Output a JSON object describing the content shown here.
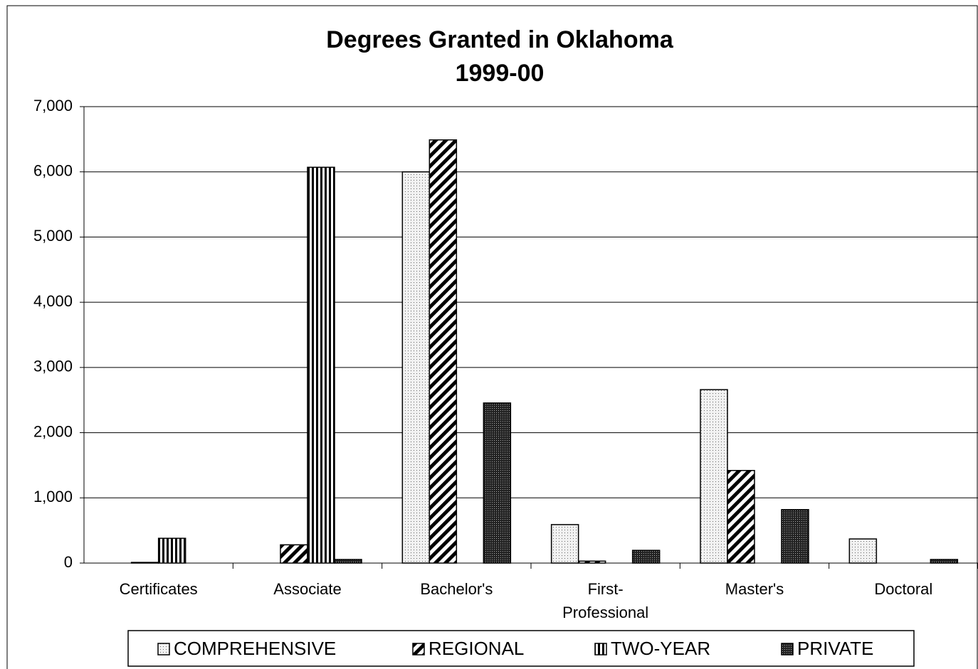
{
  "chart_data": {
    "type": "bar",
    "title": "Degrees Granted in Oklahoma",
    "subtitle": "1999-00",
    "categories": [
      "Certificates",
      "Associate",
      "Bachelor's",
      "First-Professional",
      "Master's",
      "Doctoral"
    ],
    "series": [
      {
        "name": "COMPREHENSIVE",
        "color": "#e6e6e6",
        "pattern": "dots",
        "values": [
          0,
          0,
          6000,
          590,
          2660,
          370
        ]
      },
      {
        "name": "REGIONAL",
        "color": "#ffffff",
        "pattern": "diagonal",
        "values": [
          10,
          280,
          6490,
          30,
          1420,
          0
        ]
      },
      {
        "name": "TWO-YEAR",
        "color": "#ffffff",
        "pattern": "vertical",
        "values": [
          380,
          6070,
          0,
          0,
          0,
          0
        ]
      },
      {
        "name": "PRIVATE",
        "color": "#333333",
        "pattern": "dense-dots",
        "values": [
          0,
          55,
          2455,
          195,
          820,
          55
        ]
      }
    ],
    "ylim": [
      0,
      7000
    ],
    "yticks": [
      0,
      {
        "value": 1000,
        "label": "1,000"
      },
      {
        "value": 2000,
        "label": "2,000"
      },
      {
        "value": 3000,
        "label": "3,000"
      },
      {
        "value": 4000,
        "label": "4,000"
      },
      {
        "value": 5000,
        "label": "5,000"
      },
      {
        "value": 6000,
        "label": "6,000"
      },
      {
        "value": 7000,
        "label": "7,000"
      }
    ],
    "grid": true,
    "legend": "bottom"
  }
}
